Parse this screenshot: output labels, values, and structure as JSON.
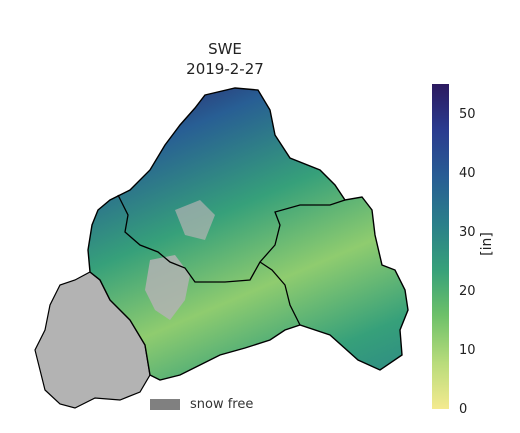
{
  "map": {
    "title": "SWE",
    "date": "2019-2-27",
    "colorbar": {
      "unit": "[in]",
      "ticks": [
        "0",
        "10",
        "20",
        "30",
        "40",
        "50"
      ],
      "min": 0,
      "max": 55,
      "colors": [
        "#f4ea8f",
        "#b9dc7b",
        "#6cc069",
        "#36a07a",
        "#2a7f8a",
        "#285e94",
        "#2a3b8f",
        "#2c1a5f"
      ]
    },
    "legend": {
      "label": "snow free",
      "color": "#808080"
    },
    "colors": {
      "snow_free_fill": "#b3b3b3",
      "border": "#000000"
    }
  }
}
